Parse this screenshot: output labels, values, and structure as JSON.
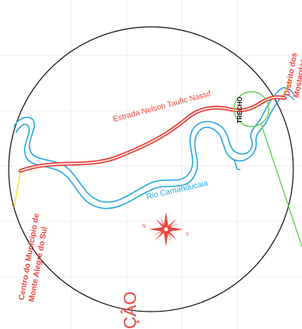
{
  "map": {
    "road_label": "Estrada Nelson Taufic Nassif",
    "river_label": "Rio Camanducaia",
    "section_label": "TRECHO",
    "destination_left_line1": "Centro do Município de",
    "destination_left_line2": "Monte Alegre do Sul",
    "destination_right_line1": "Distrito dos",
    "destination_right_line2": "Mostardas",
    "bottom_text": "ÇÃO",
    "compass": {
      "north": "N",
      "south": "S"
    },
    "colors": {
      "road": "#e8463f",
      "river": "#2aa8e0",
      "section_marker": "#6bcf5a",
      "boundary": "#111111",
      "road_connector": "#f2e64b"
    }
  }
}
